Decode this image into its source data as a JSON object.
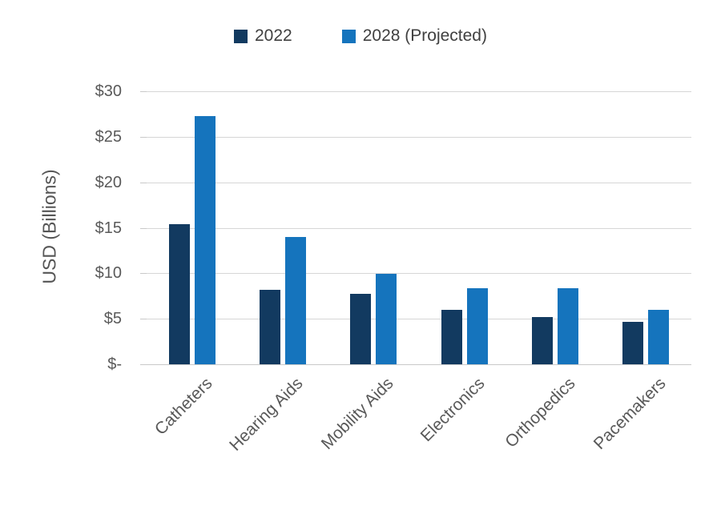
{
  "chart_data": {
    "type": "bar",
    "title": "",
    "categories": [
      "Catheters",
      "Hearing Aids",
      "Mobility Aids",
      "Electronics",
      "Orthopedics",
      "Pacemakers"
    ],
    "series": [
      {
        "name": "2022",
        "color": "#123a60",
        "values": [
          15.4,
          8.2,
          7.7,
          6.0,
          5.2,
          4.7
        ]
      },
      {
        "name": "2028 (Projected)",
        "color": "#1574bd",
        "values": [
          27.3,
          14.0,
          9.9,
          8.4,
          8.4,
          6.0
        ]
      }
    ],
    "xlabel": "",
    "ylabel": "USD (Billions)",
    "ylim": [
      0,
      30
    ],
    "y_ticks": [
      {
        "value": 0,
        "label": "$-"
      },
      {
        "value": 5,
        "label": "$5"
      },
      {
        "value": 10,
        "label": "$10"
      },
      {
        "value": 15,
        "label": "$15"
      },
      {
        "value": 20,
        "label": "$20"
      },
      {
        "value": 25,
        "label": "$25"
      },
      {
        "value": 30,
        "label": "$30"
      }
    ],
    "grid": true,
    "legend_position": "top",
    "colors": {
      "gridline": "#d6d6d6",
      "axis_line": "#c9c9c9",
      "tick_text": "#595959",
      "legend_text": "#404040",
      "background": "#ffffff"
    }
  }
}
